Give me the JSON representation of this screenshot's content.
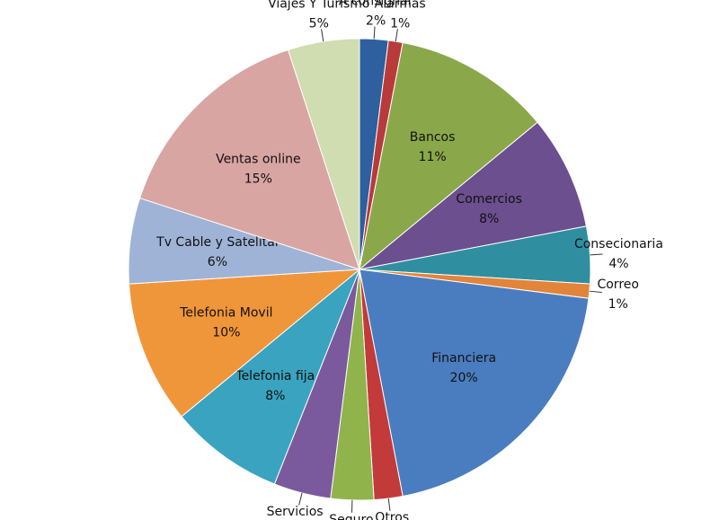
{
  "chart_data": {
    "type": "pie",
    "categories": [
      "A consignar",
      "Alarmas",
      "Bancos",
      "Comercios",
      "Consecionaria",
      "Correo",
      "Financiera",
      "Otros",
      "Seguro",
      "Servicios",
      "Telefonia fija",
      "Telefonia Movil",
      "Tv Cable y Satelital",
      "Ventas online",
      "Viajes Y Turismo"
    ],
    "values": [
      2,
      1,
      11,
      8,
      4,
      1,
      20,
      2,
      3,
      4,
      8,
      10,
      6,
      15,
      5
    ],
    "value_labels": [
      "2%",
      "1%",
      "11%",
      "8%",
      "4%",
      "1%",
      "20%",
      null,
      null,
      null,
      "8%",
      "10%",
      "6%",
      "15%",
      "5%"
    ],
    "colors": [
      "#2e5f9e",
      "#b83a3a",
      "#8aa84a",
      "#6c4f8e",
      "#2f8fa0",
      "#e2843a",
      "#4a7dbf",
      "#c23a3a",
      "#90b34c",
      "#7a5a9c",
      "#3aa3c0",
      "#f0963a",
      "#9fb3d6",
      "#d9a5a3",
      "#cfddb0"
    ]
  }
}
